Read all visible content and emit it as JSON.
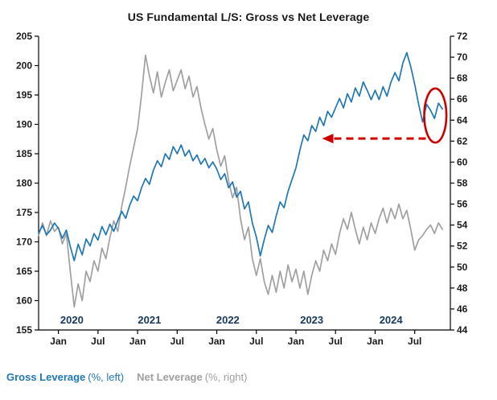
{
  "title": "US Fundamental L/S: Gross vs Net Leverage",
  "legend": {
    "gross_name": "Gross Leverage",
    "gross_suffix": "(%, left)",
    "net_name": "Net Leverage",
    "net_suffix": "(%, right)"
  },
  "colors": {
    "gross": "#1f77b4",
    "net": "#a0a0a0",
    "annotation": "#cc0000",
    "axis": "#000000",
    "tick_text": "#1a1a1a",
    "year_text": "#17375e",
    "title_text": "#1a1a1a"
  },
  "chart_data": {
    "type": "line",
    "title": "US Fundamental L/S: Gross vs Net Leverage",
    "x_unit": "decimal_year",
    "x_range": [
      2019.75,
      2024.95
    ],
    "grid": false,
    "legend_position": "bottom-left",
    "left_axis": {
      "label": "Gross Leverage (%)",
      "lim": [
        155,
        205
      ],
      "ticks": [
        155,
        160,
        165,
        170,
        175,
        180,
        185,
        190,
        195,
        200,
        205
      ]
    },
    "right_axis": {
      "label": "Net Leverage (%)",
      "lim": [
        44,
        72
      ],
      "ticks": [
        44,
        46,
        48,
        50,
        52,
        54,
        56,
        58,
        60,
        62,
        64,
        66,
        68,
        70,
        72
      ]
    },
    "x_ticks": [
      {
        "t": 2020.0,
        "label": "Jan"
      },
      {
        "t": 2020.5,
        "label": "Jul"
      },
      {
        "t": 2021.0,
        "label": "Jan"
      },
      {
        "t": 2021.5,
        "label": "Jul"
      },
      {
        "t": 2022.0,
        "label": "Jan"
      },
      {
        "t": 2022.5,
        "label": "Jul"
      },
      {
        "t": 2023.0,
        "label": "Jan"
      },
      {
        "t": 2023.5,
        "label": "Jul"
      },
      {
        "t": 2024.0,
        "label": "Jan"
      },
      {
        "t": 2024.5,
        "label": "Jul"
      }
    ],
    "year_labels": [
      {
        "t": 2020.17,
        "label": "2020"
      },
      {
        "t": 2021.15,
        "label": "2021"
      },
      {
        "t": 2022.14,
        "label": "2022"
      },
      {
        "t": 2023.2,
        "label": "2023"
      },
      {
        "t": 2024.2,
        "label": "2024"
      }
    ],
    "series": [
      {
        "name": "Net Leverage",
        "axis": "right",
        "color_key": "net",
        "points": [
          [
            2019.75,
            53.0
          ],
          [
            2019.8,
            54.2
          ],
          [
            2019.85,
            53.0
          ],
          [
            2019.9,
            54.4
          ],
          [
            2019.95,
            53.4
          ],
          [
            2020.0,
            53.8
          ],
          [
            2020.05,
            52.2
          ],
          [
            2020.1,
            53.2
          ],
          [
            2020.15,
            49.6
          ],
          [
            2020.2,
            46.2
          ],
          [
            2020.25,
            48.4
          ],
          [
            2020.3,
            46.8
          ],
          [
            2020.35,
            49.6
          ],
          [
            2020.4,
            48.6
          ],
          [
            2020.45,
            50.6
          ],
          [
            2020.5,
            49.6
          ],
          [
            2020.55,
            51.8
          ],
          [
            2020.6,
            50.8
          ],
          [
            2020.65,
            52.8
          ],
          [
            2020.7,
            54.4
          ],
          [
            2020.75,
            53.4
          ],
          [
            2020.8,
            55.8
          ],
          [
            2020.85,
            57.6
          ],
          [
            2020.9,
            59.6
          ],
          [
            2020.95,
            61.4
          ],
          [
            2021.0,
            63.2
          ],
          [
            2021.05,
            66.4
          ],
          [
            2021.1,
            70.2
          ],
          [
            2021.15,
            68.2
          ],
          [
            2021.2,
            66.6
          ],
          [
            2021.25,
            68.6
          ],
          [
            2021.3,
            66.2
          ],
          [
            2021.35,
            67.6
          ],
          [
            2021.4,
            68.8
          ],
          [
            2021.45,
            66.8
          ],
          [
            2021.5,
            67.8
          ],
          [
            2021.55,
            68.8
          ],
          [
            2021.6,
            67.0
          ],
          [
            2021.65,
            68.2
          ],
          [
            2021.7,
            66.2
          ],
          [
            2021.75,
            67.2
          ],
          [
            2021.8,
            65.2
          ],
          [
            2021.85,
            63.6
          ],
          [
            2021.9,
            62.2
          ],
          [
            2021.95,
            63.2
          ],
          [
            2022.0,
            61.2
          ],
          [
            2022.05,
            59.6
          ],
          [
            2022.1,
            60.6
          ],
          [
            2022.15,
            58.2
          ],
          [
            2022.2,
            56.6
          ],
          [
            2022.25,
            57.6
          ],
          [
            2022.3,
            54.6
          ],
          [
            2022.35,
            52.6
          ],
          [
            2022.4,
            53.8
          ],
          [
            2022.45,
            50.8
          ],
          [
            2022.5,
            49.2
          ],
          [
            2022.55,
            50.8
          ],
          [
            2022.6,
            48.6
          ],
          [
            2022.65,
            47.4
          ],
          [
            2022.7,
            49.2
          ],
          [
            2022.75,
            47.6
          ],
          [
            2022.8,
            49.6
          ],
          [
            2022.85,
            48.0
          ],
          [
            2022.9,
            50.2
          ],
          [
            2022.95,
            48.6
          ],
          [
            2023.0,
            49.8
          ],
          [
            2023.05,
            48.0
          ],
          [
            2023.1,
            49.6
          ],
          [
            2023.15,
            47.4
          ],
          [
            2023.2,
            49.2
          ],
          [
            2023.25,
            50.6
          ],
          [
            2023.3,
            49.6
          ],
          [
            2023.35,
            51.6
          ],
          [
            2023.4,
            50.6
          ],
          [
            2023.45,
            52.2
          ],
          [
            2023.5,
            51.2
          ],
          [
            2023.55,
            53.2
          ],
          [
            2023.6,
            54.6
          ],
          [
            2023.65,
            53.6
          ],
          [
            2023.7,
            55.2
          ],
          [
            2023.75,
            53.6
          ],
          [
            2023.8,
            52.2
          ],
          [
            2023.85,
            53.8
          ],
          [
            2023.9,
            52.6
          ],
          [
            2023.95,
            54.2
          ],
          [
            2024.0,
            53.2
          ],
          [
            2024.05,
            54.6
          ],
          [
            2024.1,
            55.6
          ],
          [
            2024.15,
            54.2
          ],
          [
            2024.2,
            55.6
          ],
          [
            2024.25,
            54.6
          ],
          [
            2024.3,
            56.0
          ],
          [
            2024.35,
            54.6
          ],
          [
            2024.4,
            55.4
          ],
          [
            2024.45,
            53.6
          ],
          [
            2024.5,
            51.6
          ],
          [
            2024.55,
            52.6
          ],
          [
            2024.6,
            53.0
          ],
          [
            2024.65,
            53.6
          ],
          [
            2024.7,
            54.0
          ],
          [
            2024.75,
            53.2
          ],
          [
            2024.8,
            54.2
          ],
          [
            2024.85,
            53.6
          ]
        ]
      },
      {
        "name": "Gross Leverage",
        "axis": "left",
        "color_key": "gross",
        "points": [
          [
            2019.75,
            171.5
          ],
          [
            2019.8,
            172.8
          ],
          [
            2019.85,
            171.2
          ],
          [
            2019.9,
            172.0
          ],
          [
            2019.95,
            173.2
          ],
          [
            2020.0,
            172.3
          ],
          [
            2020.05,
            170.6
          ],
          [
            2020.1,
            172.0
          ],
          [
            2020.15,
            169.2
          ],
          [
            2020.2,
            166.8
          ],
          [
            2020.25,
            169.6
          ],
          [
            2020.3,
            167.8
          ],
          [
            2020.35,
            170.5
          ],
          [
            2020.4,
            169.3
          ],
          [
            2020.45,
            171.4
          ],
          [
            2020.5,
            170.3
          ],
          [
            2020.55,
            172.6
          ],
          [
            2020.6,
            171.2
          ],
          [
            2020.65,
            173.0
          ],
          [
            2020.7,
            171.8
          ],
          [
            2020.75,
            173.6
          ],
          [
            2020.8,
            175.2
          ],
          [
            2020.85,
            174.0
          ],
          [
            2020.9,
            176.2
          ],
          [
            2020.95,
            177.8
          ],
          [
            2021.0,
            177.0
          ],
          [
            2021.05,
            179.2
          ],
          [
            2021.1,
            180.8
          ],
          [
            2021.15,
            179.8
          ],
          [
            2021.2,
            182.2
          ],
          [
            2021.25,
            183.8
          ],
          [
            2021.3,
            182.8
          ],
          [
            2021.35,
            185.0
          ],
          [
            2021.4,
            184.0
          ],
          [
            2021.45,
            186.2
          ],
          [
            2021.5,
            185.0
          ],
          [
            2021.55,
            186.5
          ],
          [
            2021.6,
            184.6
          ],
          [
            2021.65,
            185.6
          ],
          [
            2021.7,
            183.8
          ],
          [
            2021.75,
            184.8
          ],
          [
            2021.8,
            183.2
          ],
          [
            2021.85,
            184.2
          ],
          [
            2021.9,
            182.6
          ],
          [
            2021.95,
            183.6
          ],
          [
            2022.0,
            182.4
          ],
          [
            2022.05,
            180.6
          ],
          [
            2022.1,
            181.6
          ],
          [
            2022.15,
            179.2
          ],
          [
            2022.2,
            180.2
          ],
          [
            2022.25,
            177.6
          ],
          [
            2022.3,
            178.6
          ],
          [
            2022.35,
            175.6
          ],
          [
            2022.4,
            176.8
          ],
          [
            2022.45,
            173.2
          ],
          [
            2022.5,
            170.8
          ],
          [
            2022.55,
            167.6
          ],
          [
            2022.6,
            170.4
          ],
          [
            2022.65,
            172.8
          ],
          [
            2022.7,
            171.6
          ],
          [
            2022.75,
            174.4
          ],
          [
            2022.8,
            176.8
          ],
          [
            2022.85,
            175.8
          ],
          [
            2022.9,
            178.6
          ],
          [
            2022.95,
            180.6
          ],
          [
            2023.0,
            182.6
          ],
          [
            2023.05,
            185.6
          ],
          [
            2023.1,
            188.2
          ],
          [
            2023.15,
            187.2
          ],
          [
            2023.2,
            189.8
          ],
          [
            2023.25,
            188.8
          ],
          [
            2023.3,
            191.2
          ],
          [
            2023.35,
            189.8
          ],
          [
            2023.4,
            192.2
          ],
          [
            2023.45,
            191.2
          ],
          [
            2023.5,
            192.8
          ],
          [
            2023.55,
            194.4
          ],
          [
            2023.6,
            192.8
          ],
          [
            2023.65,
            195.2
          ],
          [
            2023.7,
            193.8
          ],
          [
            2023.75,
            196.2
          ],
          [
            2023.8,
            194.8
          ],
          [
            2023.85,
            197.2
          ],
          [
            2023.9,
            195.8
          ],
          [
            2023.95,
            194.2
          ],
          [
            2024.0,
            195.8
          ],
          [
            2024.05,
            194.2
          ],
          [
            2024.1,
            196.4
          ],
          [
            2024.15,
            194.8
          ],
          [
            2024.2,
            197.2
          ],
          [
            2024.25,
            198.8
          ],
          [
            2024.3,
            197.4
          ],
          [
            2024.35,
            200.4
          ],
          [
            2024.4,
            202.2
          ],
          [
            2024.45,
            199.8
          ],
          [
            2024.5,
            196.8
          ],
          [
            2024.55,
            193.4
          ],
          [
            2024.6,
            190.4
          ],
          [
            2024.65,
            193.4
          ],
          [
            2024.7,
            192.4
          ],
          [
            2024.75,
            191.0
          ],
          [
            2024.8,
            193.6
          ],
          [
            2024.85,
            192.6
          ]
        ]
      }
    ],
    "annotations": {
      "dashed_arrow": {
        "axis": "right",
        "y": 62.25,
        "x_from": 2024.64,
        "x_to": 2023.33,
        "direction": "left"
      },
      "ellipse": {
        "axis": "left",
        "cx": 2024.76,
        "cy": 191.5,
        "rx_years": 0.14,
        "ry_units": 4.6
      }
    }
  }
}
